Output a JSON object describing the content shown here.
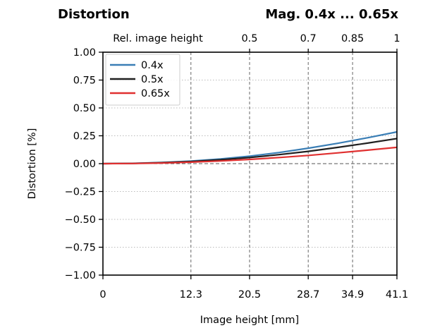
{
  "chart_data": {
    "type": "line",
    "title": "Distortion",
    "subtitle": "Mag. 0.4x ... 0.65x",
    "xlabel": "Image height [mm]",
    "ylabel": "Distortion [%]",
    "xlim": [
      0,
      41.1
    ],
    "ylim": [
      -1.0,
      1.0
    ],
    "xticks": [
      0,
      12.3,
      20.5,
      28.7,
      34.9,
      41.1
    ],
    "xtick_labels": [
      "0",
      "12.3",
      "20.5",
      "28.7",
      "34.9",
      "41.1"
    ],
    "yticks": [
      1.0,
      0.75,
      0.5,
      0.25,
      0.0,
      -0.25,
      -0.5,
      -0.75,
      -1.0
    ],
    "ytick_labels": [
      "1.00",
      "0.75",
      "0.50",
      "0.25",
      "0.00",
      "−0.25",
      "−0.50",
      "−0.75",
      "−1.00"
    ],
    "secondary_xlabel": "Rel. image height",
    "secondary_xticks": [
      20.5,
      28.7,
      34.9,
      41.1
    ],
    "secondary_xtick_labels": [
      "0.5",
      "0.7",
      "0.85",
      "1"
    ],
    "grid": true,
    "legend_position": "top-left",
    "x": [
      0,
      4.11,
      8.22,
      12.33,
      16.44,
      20.55,
      24.66,
      28.77,
      32.88,
      36.99,
      41.1
    ],
    "series": [
      {
        "name": "0.4x",
        "color": "#3a7eb5",
        "values": [
          0,
          0.0025,
          0.0105,
          0.023,
          0.042,
          0.068,
          0.1,
          0.139,
          0.183,
          0.232,
          0.285
        ]
      },
      {
        "name": "0.5x",
        "color": "#202020",
        "values": [
          0,
          0.002,
          0.009,
          0.019,
          0.035,
          0.055,
          0.081,
          0.111,
          0.146,
          0.184,
          0.225
        ]
      },
      {
        "name": "0.65x",
        "color": "#e03030",
        "values": [
          0,
          0.0014,
          0.006,
          0.013,
          0.024,
          0.038,
          0.055,
          0.074,
          0.097,
          0.121,
          0.146
        ]
      }
    ]
  }
}
